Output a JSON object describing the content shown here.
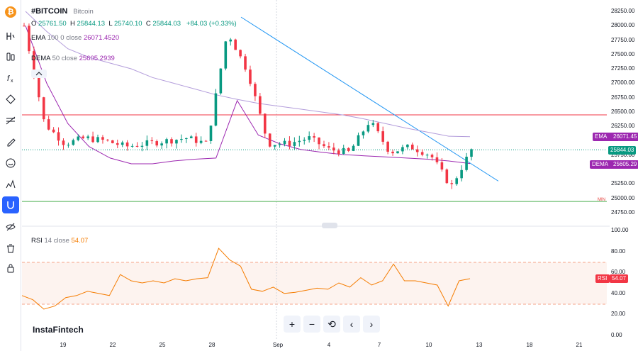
{
  "legend": {
    "symbol": "#BITCOIN",
    "name": "Bitcoin",
    "o_label": "O",
    "o_value": "25761.50",
    "h_label": "H",
    "h_value": "25844.13",
    "l_label": "L",
    "l_value": "25740.10",
    "c_label": "C",
    "c_value": "25844.03",
    "change": "+84.03 (+0.33%)",
    "ema_label": "EMA",
    "ema_params": "100 0 close",
    "ema_value": "26071.4520",
    "dema_label": "DEMA",
    "dema_params": "50 close",
    "dema_value": "25605.2939",
    "rsi_label": "RSI",
    "rsi_params": "14 close",
    "rsi_value": "54.07"
  },
  "price_axis": {
    "ticks": [
      "28250.00",
      "28000.00",
      "27750.00",
      "27500.00",
      "27250.00",
      "27000.00",
      "26750.00",
      "26500.00",
      "26250.00",
      "25750.00",
      "25250.00",
      "25000.00",
      "24750.00"
    ],
    "tags": {
      "ema": {
        "label": "EMA",
        "value": "26071.45",
        "color": "#9c27b0"
      },
      "price": {
        "value": "25844.03",
        "color": "#089981"
      },
      "dema": {
        "label": "DEMA",
        "value": "25605.29",
        "color": "#9c27b0"
      }
    },
    "min_marker": "MIN"
  },
  "rsi_axis": {
    "ticks": [
      "100.00",
      "80.00",
      "60.00",
      "40.00",
      "20.00",
      "0.00"
    ],
    "tag": {
      "label": "RSI",
      "value": "54.07",
      "color": "#f23645"
    }
  },
  "dates": [
    "19",
    "22",
    "25",
    "28",
    "Sep",
    "4",
    "7",
    "10",
    "13",
    "18",
    "21"
  ],
  "branding": "InstaFintech",
  "toolbar": {
    "icons": [
      "bitcoin-logo",
      "indicator-icon",
      "compare-icon",
      "formula-icon",
      "drawing-icon",
      "fib-icon",
      "brush-icon",
      "emoji-icon",
      "pattern-icon",
      "magnet-icon",
      "hide-icon",
      "trash-icon",
      "lock-icon"
    ]
  },
  "navigation": {
    "zoom_in": "+",
    "zoom_out": "−",
    "reset": "⟲",
    "back": "‹",
    "forward": "›"
  },
  "colors": {
    "up": "#089981",
    "down": "#f23645",
    "ema": "#b39ddb",
    "dema": "#9c27b0",
    "rsi": "#f57c00",
    "resistance": "#f23645",
    "support": "#4caf50",
    "trend": "#2196f3"
  },
  "chart_data": [
    {
      "type": "candlestick",
      "symbol": "#BITCOIN",
      "x_labels": [
        "19",
        "22",
        "25",
        "28",
        "Sep",
        "4",
        "7",
        "10",
        "13",
        "18",
        "21"
      ],
      "ylim": [
        24750,
        28250
      ],
      "horizontal_lines": [
        26450,
        24945
      ],
      "last_price": 25844.03,
      "series": [
        {
          "name": "EMA 100",
          "values": [
            28250,
            27900,
            27600,
            27450,
            27350,
            27250,
            27100,
            27000,
            26900,
            26800,
            26720,
            26650,
            26600,
            26550,
            26500,
            26450,
            26380,
            26300,
            26220,
            26150,
            26080,
            26071
          ]
        },
        {
          "name": "DEMA 50",
          "values": [
            28000,
            27000,
            26300,
            25900,
            25700,
            25600,
            25600,
            25650,
            25680,
            25700,
            26700,
            26100,
            25950,
            25850,
            25800,
            25760,
            25740,
            25720,
            25700,
            25680,
            25650,
            25605
          ]
        },
        {
          "name": "Close",
          "values": [
            28000,
            26300,
            25950,
            26050,
            26000,
            25900,
            25950,
            26000,
            26050,
            25950,
            27900,
            27200,
            25950,
            25950,
            26050,
            25850,
            25800,
            26350,
            25800,
            25900,
            25750,
            25200,
            25844
          ]
        }
      ]
    },
    {
      "type": "line",
      "name": "RSI 14",
      "ylim": [
        0,
        100
      ],
      "bands": [
        30,
        70
      ],
      "values": [
        38,
        34,
        25,
        28,
        36,
        38,
        42,
        40,
        38,
        58,
        52,
        50,
        52,
        50,
        54,
        52,
        54,
        55,
        83,
        72,
        66,
        44,
        42,
        46,
        40,
        41,
        43,
        45,
        44,
        50,
        46,
        55,
        48,
        52,
        68,
        52,
        52,
        50,
        48,
        28,
        52,
        54.07
      ]
    }
  ]
}
